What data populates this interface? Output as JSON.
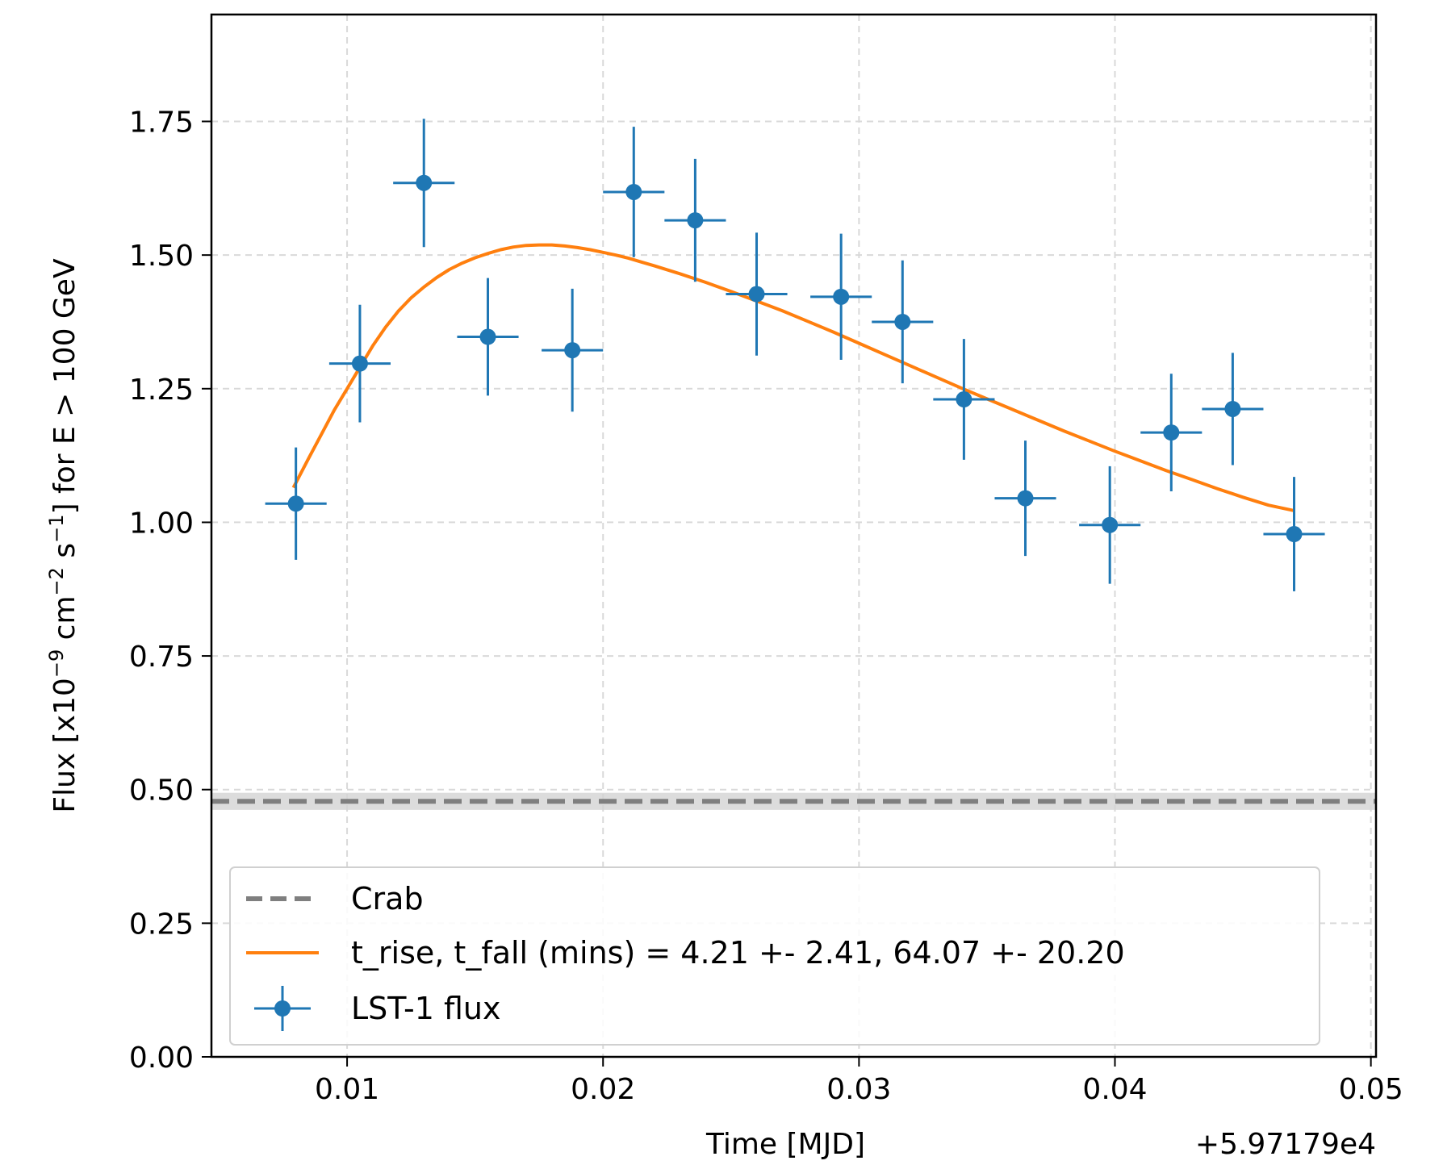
{
  "chart_data": {
    "type": "scatter",
    "title": "",
    "xlabel": "Time [MJD]",
    "ylabel_parts": {
      "pre": "Flux [x10",
      "sup1": "−9",
      "mid": " cm",
      "sup2": "−2",
      "mid2": " s",
      "sup3": "−1",
      "post": "] for E > 100 GeV"
    },
    "x_offset_label": "+5.97179e4",
    "xlim": [
      0.0047,
      0.0502
    ],
    "ylim": [
      0.0,
      1.95
    ],
    "xticks": [
      0.01,
      0.02,
      0.03,
      0.04,
      0.05
    ],
    "xtick_labels": [
      "0.01",
      "0.02",
      "0.03",
      "0.04",
      "0.05"
    ],
    "yticks": [
      0.0,
      0.25,
      0.5,
      0.75,
      1.0,
      1.25,
      1.5,
      1.75
    ],
    "ytick_labels": [
      "0.00",
      "0.25",
      "0.50",
      "0.75",
      "1.00",
      "1.25",
      "1.50",
      "1.75"
    ],
    "grid": true,
    "legend_position": "lower-center",
    "colors": {
      "points": "#1f77b4",
      "fit": "#ff7f0e",
      "crab": "#7f7f7f",
      "crab_band": "#d3d3d3",
      "grid": "#d9d9d9"
    },
    "crab": {
      "name": "Crab",
      "value": 0.478,
      "band": [
        0.462,
        0.494
      ]
    },
    "fit": {
      "name": "t_rise, t_fall (mins) = 4.21 +- 2.41, 64.07 +- 20.20",
      "x": [
        0.0079,
        0.0085,
        0.009,
        0.0095,
        0.01,
        0.0105,
        0.011,
        0.0115,
        0.012,
        0.0125,
        0.013,
        0.0135,
        0.014,
        0.0145,
        0.015,
        0.0155,
        0.016,
        0.0165,
        0.017,
        0.0175,
        0.018,
        0.0185,
        0.019,
        0.0195,
        0.02,
        0.0205,
        0.021,
        0.0215,
        0.022,
        0.023,
        0.024,
        0.025,
        0.026,
        0.027,
        0.028,
        0.029,
        0.03,
        0.031,
        0.032,
        0.033,
        0.034,
        0.035,
        0.036,
        0.037,
        0.038,
        0.039,
        0.04,
        0.041,
        0.042,
        0.043,
        0.044,
        0.045,
        0.046,
        0.047
      ],
      "y": [
        1.065,
        1.12,
        1.165,
        1.21,
        1.25,
        1.29,
        1.33,
        1.365,
        1.395,
        1.42,
        1.44,
        1.458,
        1.473,
        1.485,
        1.495,
        1.503,
        1.51,
        1.515,
        1.518,
        1.519,
        1.519,
        1.517,
        1.514,
        1.51,
        1.505,
        1.5,
        1.494,
        1.487,
        1.48,
        1.465,
        1.449,
        1.432,
        1.414,
        1.396,
        1.376,
        1.356,
        1.335,
        1.314,
        1.293,
        1.272,
        1.251,
        1.231,
        1.211,
        1.191,
        1.171,
        1.152,
        1.133,
        1.115,
        1.097,
        1.08,
        1.063,
        1.047,
        1.032,
        1.022
      ]
    },
    "points": {
      "name": "LST-1 flux",
      "x": [
        0.008,
        0.0105,
        0.013,
        0.0155,
        0.0188,
        0.0212,
        0.0236,
        0.026,
        0.0293,
        0.0317,
        0.0341,
        0.0365,
        0.0398,
        0.0422,
        0.0446,
        0.047
      ],
      "y": [
        1.035,
        1.297,
        1.635,
        1.347,
        1.322,
        1.618,
        1.565,
        1.427,
        1.422,
        1.375,
        1.23,
        1.045,
        0.995,
        1.168,
        1.212,
        0.978
      ],
      "xerr": [
        0.0012,
        0.0012,
        0.0012,
        0.0012,
        0.0012,
        0.0012,
        0.0012,
        0.0012,
        0.0012,
        0.0012,
        0.0012,
        0.0012,
        0.0012,
        0.0012,
        0.0012,
        0.0012
      ],
      "yerr": [
        0.105,
        0.11,
        0.12,
        0.11,
        0.115,
        0.122,
        0.115,
        0.115,
        0.118,
        0.115,
        0.113,
        0.108,
        0.11,
        0.11,
        0.105,
        0.107
      ]
    }
  }
}
